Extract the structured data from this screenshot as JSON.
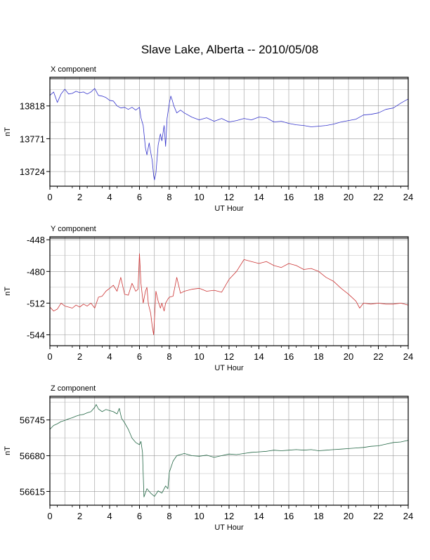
{
  "title": "Slave Lake, Alberta -- 2010/05/08",
  "chart_data": [
    {
      "type": "line",
      "panel_label": "X component",
      "xlabel": "UT Hour",
      "ylabel": "nT",
      "xlim": [
        0,
        24
      ],
      "ylim": [
        13703,
        13859
      ],
      "x_ticks": [
        "0",
        "2",
        "4",
        "6",
        "8",
        "10",
        "12",
        "14",
        "16",
        "18",
        "20",
        "22",
        "24"
      ],
      "y_ticks": [
        13724,
        13771,
        13818
      ],
      "y_tick_labels": [
        "13724",
        "13771",
        "13818"
      ],
      "grid": true,
      "color": "#3333cc",
      "series": [
        {
          "x": [
            0,
            0.25,
            0.5,
            0.75,
            1,
            1.25,
            1.5,
            1.75,
            2,
            2.25,
            2.5,
            2.75,
            3,
            3.25,
            3.5,
            3.75,
            4,
            4.25,
            4.5,
            4.75,
            5,
            5.25,
            5.5,
            5.75,
            6,
            6.1,
            6.25,
            6.4,
            6.5,
            6.65,
            6.75,
            6.85,
            6.95,
            7.0,
            7.1,
            7.25,
            7.4,
            7.5,
            7.65,
            7.75,
            7.85,
            8.0,
            8.1,
            8.2,
            8.3,
            8.5,
            8.75,
            9,
            9.5,
            10,
            10.5,
            11,
            11.5,
            12,
            12.5,
            13,
            13.5,
            14,
            14.5,
            15,
            15.5,
            16,
            16.5,
            17,
            17.5,
            18,
            18.5,
            19,
            19.5,
            20,
            20.5,
            21,
            21.5,
            22,
            22.5,
            23,
            23.5,
            24
          ],
          "y": [
            13833,
            13838,
            13823,
            13835,
            13842,
            13835,
            13836,
            13839,
            13837,
            13838,
            13835,
            13838,
            13843,
            13833,
            13832,
            13830,
            13826,
            13825,
            13818,
            13815,
            13816,
            13813,
            13816,
            13812,
            13816,
            13801,
            13790,
            13758,
            13748,
            13765,
            13752,
            13740,
            13718,
            13712,
            13722,
            13762,
            13778,
            13768,
            13790,
            13760,
            13800,
            13822,
            13832,
            13826,
            13818,
            13808,
            13812,
            13808,
            13802,
            13798,
            13801,
            13796,
            13800,
            13795,
            13797,
            13800,
            13798,
            13802,
            13801,
            13795,
            13796,
            13793,
            13791,
            13790,
            13788,
            13789,
            13790,
            13792,
            13795,
            13797,
            13799,
            13805,
            13806,
            13808,
            13813,
            13815,
            13822,
            13828
          ]
        }
      ]
    },
    {
      "type": "line",
      "panel_label": "Y component",
      "xlabel": "UT Hour",
      "ylabel": "nT",
      "xlim": [
        0,
        24
      ],
      "ylim": [
        -555,
        -445
      ],
      "x_ticks": [
        "0",
        "2",
        "4",
        "6",
        "8",
        "10",
        "12",
        "14",
        "16",
        "18",
        "20",
        "22",
        "24"
      ],
      "y_ticks": [
        -544,
        -512,
        -480,
        -448
      ],
      "y_tick_labels": [
        "-544",
        "-512",
        "-480",
        "-448"
      ],
      "grid": true,
      "color": "#cc3333",
      "series": [
        {
          "x": [
            0,
            0.25,
            0.5,
            0.75,
            1,
            1.25,
            1.5,
            1.75,
            2,
            2.25,
            2.5,
            2.75,
            3,
            3.25,
            3.5,
            3.75,
            4,
            4.25,
            4.5,
            4.75,
            5,
            5.25,
            5.5,
            5.75,
            5.9,
            6.0,
            6.1,
            6.25,
            6.4,
            6.5,
            6.6,
            6.75,
            6.85,
            6.95,
            7.1,
            7.25,
            7.4,
            7.5,
            7.65,
            7.75,
            7.9,
            8.0,
            8.25,
            8.5,
            8.75,
            9,
            9.5,
            10,
            10.5,
            11,
            11.5,
            12,
            12.5,
            13,
            13.5,
            14,
            14.5,
            15,
            15.5,
            16,
            16.5,
            17,
            17.5,
            18,
            18.5,
            19,
            19.5,
            20,
            20.5,
            20.75,
            21,
            21.5,
            22,
            22.5,
            23,
            23.5,
            24
          ],
          "y": [
            -516,
            -520,
            -518,
            -512,
            -515,
            -516,
            -517,
            -514,
            -516,
            -513,
            -515,
            -512,
            -517,
            -506,
            -505,
            -500,
            -497,
            -494,
            -500,
            -486,
            -503,
            -504,
            -492,
            -500,
            -498,
            -462,
            -492,
            -512,
            -500,
            -496,
            -513,
            -522,
            -535,
            -544,
            -500,
            -510,
            -517,
            -512,
            -520,
            -512,
            -508,
            -506,
            -505,
            -486,
            -502,
            -500,
            -498,
            -497,
            -500,
            -499,
            -501,
            -488,
            -480,
            -468,
            -470,
            -472,
            -470,
            -474,
            -476,
            -472,
            -474,
            -478,
            -477,
            -480,
            -486,
            -490,
            -497,
            -503,
            -510,
            -517,
            -512,
            -513,
            -512,
            -513,
            -513,
            -512,
            -514
          ]
        }
      ]
    },
    {
      "type": "line",
      "panel_label": "Z component",
      "xlabel": "UT Hour",
      "ylabel": "nT",
      "xlim": [
        0,
        24
      ],
      "ylim": [
        56590,
        56788
      ],
      "x_ticks": [
        "0",
        "2",
        "4",
        "6",
        "8",
        "10",
        "12",
        "14",
        "16",
        "18",
        "20",
        "22",
        "24"
      ],
      "y_ticks": [
        56615,
        56680,
        56745
      ],
      "y_tick_labels": [
        "56615",
        "56680",
        "56745"
      ],
      "grid": true,
      "color": "#226644",
      "series": [
        {
          "x": [
            0,
            0.25,
            0.5,
            0.75,
            1,
            1.25,
            1.5,
            1.75,
            2,
            2.25,
            2.5,
            2.75,
            3,
            3.1,
            3.25,
            3.5,
            3.75,
            4,
            4.25,
            4.5,
            4.65,
            4.8,
            5,
            5.25,
            5.5,
            5.75,
            6,
            6.1,
            6.2,
            6.3,
            6.5,
            6.75,
            7,
            7.25,
            7.5,
            7.75,
            7.9,
            8,
            8.25,
            8.5,
            8.75,
            9,
            9.5,
            10,
            10.5,
            11,
            11.5,
            12,
            12.5,
            13,
            13.5,
            14,
            14.5,
            15,
            15.5,
            16,
            16.5,
            17,
            17.5,
            18,
            18.5,
            19,
            19.5,
            20,
            20.5,
            21,
            21.5,
            22,
            22.5,
            23,
            23.5,
            24
          ],
          "y": [
            56728,
            56735,
            56738,
            56742,
            56744,
            56747,
            56749,
            56752,
            56754,
            56755,
            56758,
            56760,
            56768,
            56773,
            56765,
            56760,
            56764,
            56762,
            56760,
            56756,
            56766,
            56748,
            56740,
            56728,
            56712,
            56704,
            56700,
            56706,
            56686,
            56605,
            56620,
            56612,
            56606,
            56616,
            56612,
            56625,
            56620,
            56650,
            56670,
            56680,
            56682,
            56684,
            56680,
            56679,
            56681,
            56677,
            56680,
            56683,
            56682,
            56684,
            56686,
            56687,
            56688,
            56690,
            56689,
            56690,
            56691,
            56690,
            56691,
            56689,
            56690,
            56691,
            56692,
            56693,
            56694,
            56695,
            56697,
            56698,
            56701,
            56704,
            56705,
            56708
          ]
        }
      ]
    }
  ]
}
